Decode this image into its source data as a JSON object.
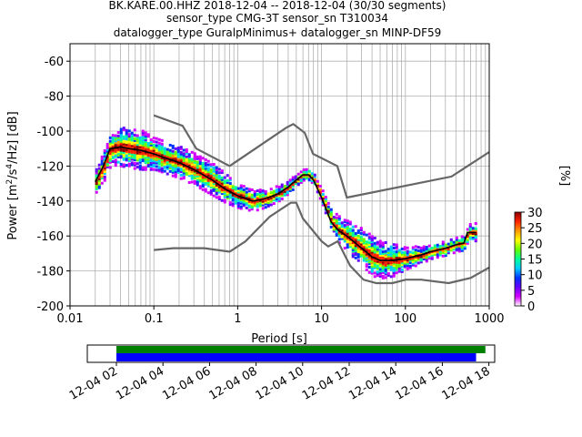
{
  "chart_data": {
    "type": "heatmap",
    "title_lines": [
      "BK.KARE.00.HHZ   2018-12-04 -- 2018-12-04  (30/30 segments)",
      "sensor_type CMG-3T sensor_sn T310034",
      "datalogger_type GuralpMinimus+ datalogger_sn MINP-DF59"
    ],
    "xlabel": "Period [s]",
    "ylabel_main": "Power [m",
    "ylabel_sup1": "2",
    "ylabel_mid": "/s",
    "ylabel_sup2": "4",
    "ylabel_end": "/Hz] [dB]",
    "xscale": "log",
    "xlim": [
      0.01,
      1000
    ],
    "ylim": [
      -200,
      -50
    ],
    "x_tick_labels": [
      "0.01",
      "0.1",
      "1",
      "10",
      "100",
      "1000"
    ],
    "y_tick_labels": [
      "-60",
      "-80",
      "-100",
      "-120",
      "-140",
      "-160",
      "-180",
      "-200"
    ],
    "grid": true,
    "colorbar": {
      "label": "[%]",
      "range": [
        0,
        30
      ],
      "tick_labels": [
        "0",
        "5",
        "10",
        "15",
        "20",
        "25",
        "30"
      ],
      "colors": [
        "#ffffff",
        "#d400ff",
        "#6600ff",
        "#0033ff",
        "#00ccff",
        "#00ff99",
        "#66ff00",
        "#ffff00",
        "#ff9900",
        "#ff2200",
        "#8b0000"
      ]
    },
    "mode_curve": [
      [
        0.02,
        -129
      ],
      [
        0.025,
        -120
      ],
      [
        0.03,
        -110
      ],
      [
        0.04,
        -109
      ],
      [
        0.05,
        -110
      ],
      [
        0.07,
        -111
      ],
      [
        0.1,
        -113
      ],
      [
        0.15,
        -116
      ],
      [
        0.2,
        -118
      ],
      [
        0.3,
        -122
      ],
      [
        0.5,
        -128
      ],
      [
        0.7,
        -133
      ],
      [
        1.0,
        -137
      ],
      [
        1.5,
        -140
      ],
      [
        2.0,
        -139
      ],
      [
        3.0,
        -136
      ],
      [
        4.0,
        -132
      ],
      [
        5.0,
        -128
      ],
      [
        6.0,
        -125
      ],
      [
        7.0,
        -125
      ],
      [
        8.0,
        -128
      ],
      [
        10.0,
        -138
      ],
      [
        13.0,
        -152
      ],
      [
        16.0,
        -157
      ],
      [
        20.0,
        -160
      ],
      [
        30.0,
        -167
      ],
      [
        40.0,
        -172
      ],
      [
        50.0,
        -174
      ],
      [
        70.0,
        -174
      ],
      [
        100.0,
        -173
      ],
      [
        150.0,
        -171
      ],
      [
        200.0,
        -169
      ],
      [
        300.0,
        -167
      ],
      [
        400.0,
        -165
      ],
      [
        500.0,
        -164
      ],
      [
        550.0,
        -158
      ],
      [
        700.0,
        -158
      ]
    ],
    "nhnm": [
      [
        0.1,
        -91
      ],
      [
        0.22,
        -97
      ],
      [
        0.32,
        -110
      ],
      [
        0.8,
        -120
      ],
      [
        3.8,
        -98
      ],
      [
        4.6,
        -96
      ],
      [
        6.3,
        -101
      ],
      [
        7.9,
        -113
      ],
      [
        15.4,
        -120
      ],
      [
        20.0,
        -138
      ],
      [
        354.8,
        -126
      ],
      [
        1000.0,
        -112
      ]
    ],
    "nlnm": [
      [
        0.1,
        -168
      ],
      [
        0.17,
        -167
      ],
      [
        0.4,
        -167
      ],
      [
        0.8,
        -169
      ],
      [
        1.24,
        -163
      ],
      [
        2.4,
        -149
      ],
      [
        4.3,
        -141
      ],
      [
        5.0,
        -141
      ],
      [
        6.0,
        -150
      ],
      [
        10.0,
        -163
      ],
      [
        12.0,
        -166
      ],
      [
        15.6,
        -163
      ],
      [
        21.9,
        -177
      ],
      [
        31.6,
        -185
      ],
      [
        45.0,
        -187
      ],
      [
        70.0,
        -187
      ],
      [
        101.0,
        -185
      ],
      [
        154.0,
        -185
      ],
      [
        328.0,
        -187
      ],
      [
        600.0,
        -184
      ],
      [
        1000.0,
        -178
      ]
    ],
    "spread": [
      [
        0.02,
        6
      ],
      [
        0.04,
        10
      ],
      [
        0.07,
        10
      ],
      [
        0.1,
        8
      ],
      [
        0.2,
        8
      ],
      [
        0.5,
        8
      ],
      [
        1.0,
        6
      ],
      [
        2.0,
        4
      ],
      [
        5.0,
        2
      ],
      [
        8.0,
        2
      ],
      [
        10.0,
        3
      ],
      [
        15.0,
        6
      ],
      [
        25.0,
        9
      ],
      [
        40.0,
        10
      ],
      [
        70.0,
        8
      ],
      [
        100.0,
        5
      ],
      [
        200.0,
        3
      ],
      [
        500.0,
        3
      ],
      [
        700.0,
        4
      ]
    ],
    "timeline": {
      "tick_labels": [
        "12-04 02",
        "12-04 04",
        "12-04 06",
        "12-04 08",
        "12-04 10",
        "12-04 12",
        "12-04 14",
        "12-04 16",
        "12-04 18"
      ],
      "start_hour": 0.75,
      "end_hour": 18.25,
      "data_bar": {
        "color": "#008000",
        "start_hour": 2.0,
        "end_hour": 17.85
      },
      "psd_bar": {
        "color": "#0000ff",
        "start_hour": 2.0,
        "end_hour": 17.45
      }
    }
  }
}
